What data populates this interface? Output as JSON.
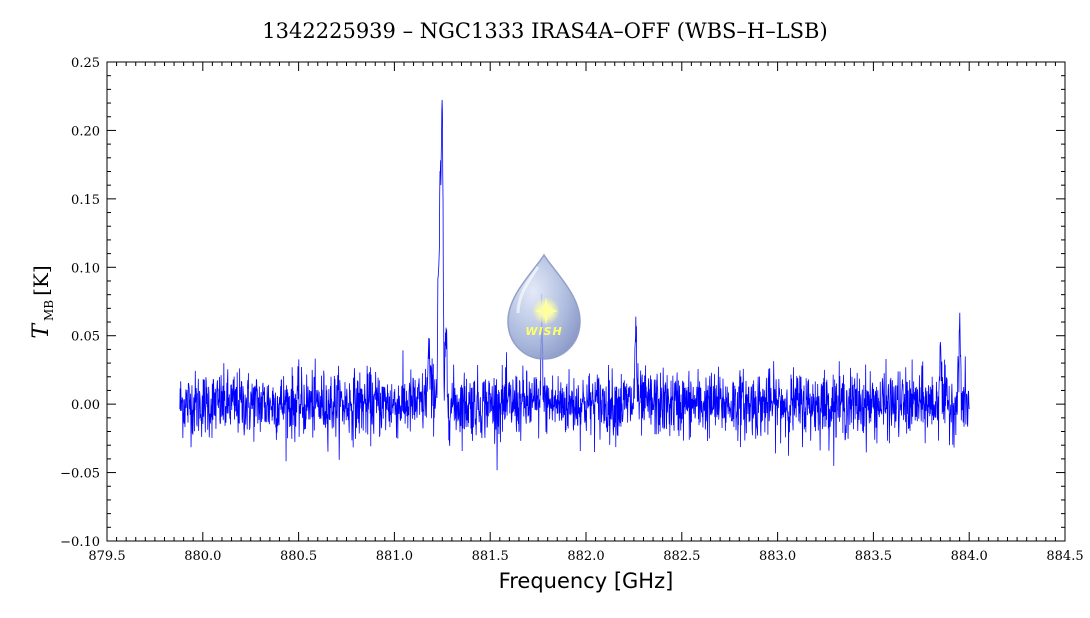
{
  "chart_data": {
    "type": "line",
    "title": "1342225939 – NGC1333 IRAS4A–OFF (WBS–H–LSB)",
    "xlabel": "Frequency [GHz]",
    "ylabel": {
      "main": "T",
      "sub": "MB",
      "unit": "[K]"
    },
    "xlim": [
      879.5,
      884.5
    ],
    "ylim": [
      -0.1,
      0.25
    ],
    "xticks": [
      "879.5",
      "880.0",
      "880.5",
      "881.0",
      "881.5",
      "882.0",
      "882.5",
      "883.0",
      "883.5",
      "884.0",
      "884.5"
    ],
    "yticks": [
      "−0.10",
      "−0.05",
      "0.00",
      "0.05",
      "0.10",
      "0.15",
      "0.20",
      "0.25"
    ],
    "grid": false,
    "line_color": "#0000ff",
    "series": [
      {
        "x_range": [
          879.88,
          884.0
        ],
        "noise_rms": 0.012,
        "peaks": [
          {
            "x": 881.18,
            "y": 0.03
          },
          {
            "x": 881.23,
            "y": 0.09
          },
          {
            "x": 881.24,
            "y": 0.15
          },
          {
            "x": 881.25,
            "y": 0.2
          },
          {
            "x": 881.27,
            "y": 0.05
          },
          {
            "x": 881.77,
            "y": 0.06
          },
          {
            "x": 882.26,
            "y": 0.06
          },
          {
            "x": 883.85,
            "y": 0.05
          },
          {
            "x": 883.95,
            "y": 0.06
          }
        ]
      }
    ]
  },
  "logo": {
    "text": "WISH"
  }
}
